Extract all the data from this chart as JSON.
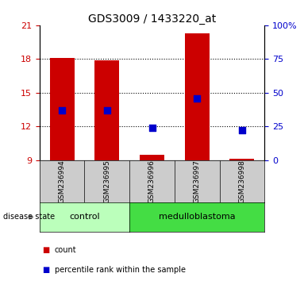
{
  "title": "GDS3009 / 1433220_at",
  "samples": [
    "GSM236994",
    "GSM236995",
    "GSM236996",
    "GSM236997",
    "GSM236998"
  ],
  "bar_bottom": 9,
  "bar_tops": [
    18.1,
    17.9,
    9.5,
    20.3,
    9.1
  ],
  "percentile_values": [
    13.4,
    13.4,
    11.9,
    14.5,
    11.7
  ],
  "ylim_left": [
    9,
    21
  ],
  "ylim_right": [
    0,
    100
  ],
  "yticks_left": [
    9,
    12,
    15,
    18,
    21
  ],
  "yticks_right": [
    0,
    25,
    50,
    75,
    100
  ],
  "ytick_labels_right": [
    "0",
    "25",
    "50",
    "75",
    "100%"
  ],
  "hlines": [
    12,
    15,
    18
  ],
  "bar_color": "#cc0000",
  "dot_color": "#0000cc",
  "n_control": 2,
  "n_med": 3,
  "control_color": "#bbffbb",
  "medulloblastoma_color": "#44dd44",
  "label_color_left": "#cc0000",
  "label_color_right": "#0000cc",
  "tick_area_color": "#cccccc",
  "bar_width": 0.55,
  "dot_size": 40
}
